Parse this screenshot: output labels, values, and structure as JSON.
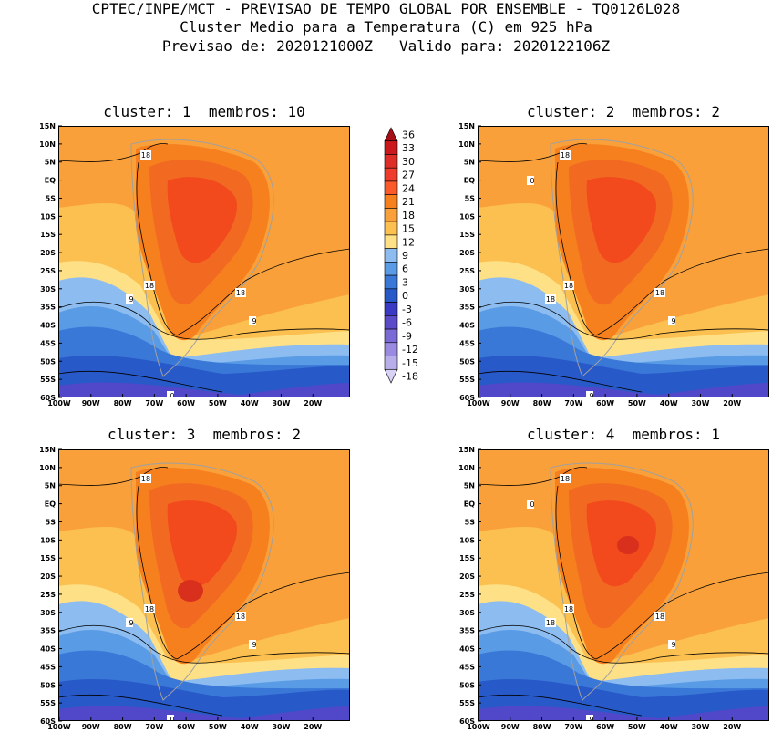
{
  "header": {
    "line1": "CPTEC/INPE/MCT - PREVISAO DE TEMPO GLOBAL POR ENSEMBLE - TQ0126L028",
    "line2": "Cluster Medio para a Temperatura (C) em 925 hPa",
    "line3": "Previsao de: 2020121000Z   Valido para: 2020122106Z"
  },
  "axes": {
    "lat_labels": [
      "15N",
      "10N",
      "5N",
      "EQ",
      "5S",
      "10S",
      "15S",
      "20S",
      "25S",
      "30S",
      "35S",
      "40S",
      "45S",
      "50S",
      "55S",
      "60S"
    ],
    "lon_labels": [
      "100W",
      "90W",
      "80W",
      "70W",
      "60W",
      "50W",
      "40W",
      "30W",
      "20W"
    ]
  },
  "colorbar": {
    "labels": [
      "36",
      "33",
      "30",
      "27",
      "24",
      "21",
      "18",
      "15",
      "12",
      "9",
      "6",
      "3",
      "0",
      "-3",
      "-6",
      "-9",
      "-12",
      "-15",
      "-18"
    ],
    "colors": [
      "#a50f15",
      "#cb181d",
      "#de2d26",
      "#ef3b2c",
      "#fb5a2a",
      "#f7801e",
      "#f9a03a",
      "#fbc050",
      "#fee087",
      "#8cbcf0",
      "#5a9be6",
      "#3a78d8",
      "#2859c8",
      "#3a3ac4",
      "#5a4cc8",
      "#7a6ad6",
      "#9a8ae0",
      "#b8aeea",
      "#d8d2f4"
    ]
  },
  "panels": [
    {
      "title": "cluster: 1  membros: 10",
      "contour_labels": [
        "18",
        "18",
        "18",
        "9",
        "9",
        "0"
      ]
    },
    {
      "title": "cluster: 2  membros: 2",
      "contour_labels": [
        "18",
        "18",
        "18",
        "18",
        "9",
        "9",
        "0"
      ]
    },
    {
      "title": "cluster: 3  membros: 2",
      "contour_labels": [
        "18",
        "18",
        "18",
        "9",
        "9",
        "0"
      ]
    },
    {
      "title": "cluster: 4  membros: 1",
      "contour_labels": [
        "18",
        "18",
        "18",
        "18",
        "9",
        "9",
        "0"
      ]
    }
  ]
}
